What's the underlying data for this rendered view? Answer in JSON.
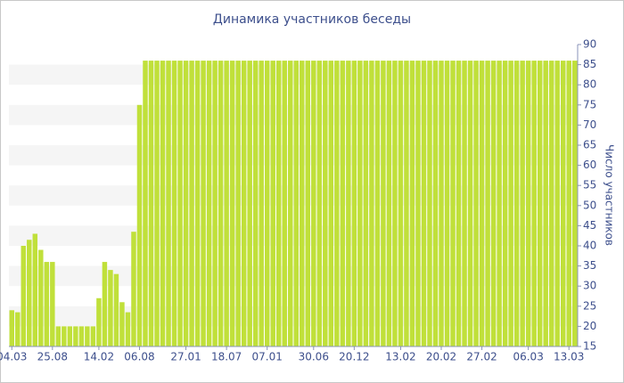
{
  "chart_data": {
    "type": "bar",
    "title": "Динамика участников беседы",
    "y_axis_label": "Число участников",
    "categories": [
      "04.03",
      null,
      null,
      null,
      null,
      null,
      null,
      "25.08",
      null,
      null,
      null,
      null,
      null,
      null,
      null,
      "14.02",
      null,
      null,
      null,
      null,
      null,
      null,
      "06.08",
      null,
      null,
      null,
      null,
      null,
      null,
      null,
      "27.01",
      null,
      null,
      null,
      null,
      null,
      null,
      "18.07",
      null,
      null,
      null,
      null,
      null,
      null,
      "07.01",
      null,
      null,
      null,
      null,
      null,
      null,
      null,
      "30.06",
      null,
      null,
      null,
      null,
      null,
      null,
      "20.12",
      null,
      null,
      null,
      null,
      null,
      null,
      null,
      "13.02",
      null,
      null,
      null,
      null,
      null,
      null,
      "20.02",
      null,
      null,
      null,
      null,
      null,
      null,
      "27.02",
      null,
      null,
      null,
      null,
      null,
      null,
      null,
      "06.03",
      null,
      null,
      null,
      null,
      null,
      null,
      "13.03",
      null
    ],
    "values": [
      24,
      23.5,
      40,
      41.5,
      43,
      39,
      36,
      36,
      20,
      20,
      20,
      20,
      20,
      20,
      20,
      27,
      36,
      34,
      33,
      26,
      23.5,
      43.5,
      75,
      86,
      86,
      86,
      86,
      86,
      86,
      86,
      86,
      86,
      86,
      86,
      86,
      86,
      86,
      86,
      86,
      86,
      86,
      86,
      86,
      86,
      86,
      86,
      86,
      86,
      86,
      86,
      86,
      86,
      86,
      86,
      86,
      86,
      86,
      86,
      86,
      86,
      86,
      86,
      86,
      86,
      86,
      86,
      86,
      86,
      86,
      86,
      86,
      86,
      86,
      86,
      86,
      86,
      86,
      86,
      86,
      86,
      86,
      86,
      86,
      86,
      86,
      86,
      86,
      86,
      86,
      86,
      86,
      86,
      86,
      86,
      86,
      86,
      86,
      86
    ],
    "color": "#c0e03a",
    "ylim": [
      15,
      90
    ],
    "yticks": [
      15,
      20,
      25,
      30,
      35,
      40,
      45,
      50,
      55,
      60,
      65,
      70,
      75,
      80,
      85,
      90
    ],
    "y_axis_side": "right",
    "grid": "bands"
  }
}
